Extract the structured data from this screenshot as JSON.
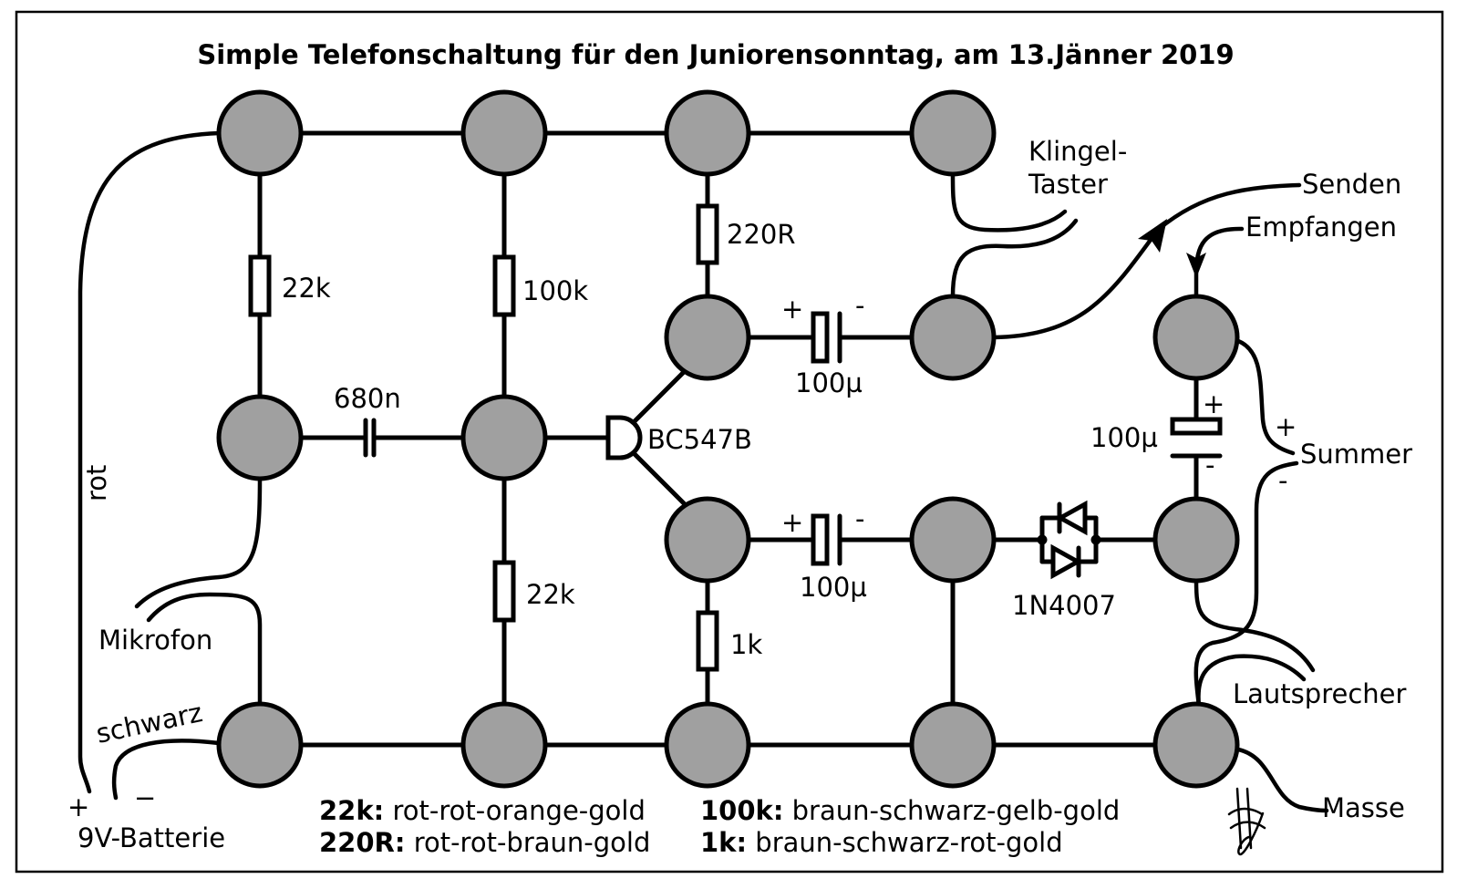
{
  "title": "Simple Telefonschaltung für den Juniorensonntag, am 13.Jänner 2019",
  "components": {
    "r1": "22k",
    "r2": "100k",
    "r3": "220R",
    "r4": "22k",
    "r5": "1k",
    "c1": "680n",
    "c2": "100µ",
    "c3": "100µ",
    "c4": "100µ",
    "transistor": "BC547B",
    "diode": "1N4007"
  },
  "polarity": {
    "plus": "+",
    "minus": "-",
    "minus_dash": "−"
  },
  "labels": {
    "klingel_line1": "Klingel-",
    "klingel_line2": "Taster",
    "senden": "Senden",
    "empfangen": "Empfangen",
    "summer": "Summer",
    "lautsprecher": "Lautsprecher",
    "masse": "Masse",
    "mikrofon": "Mikrofon",
    "rot": "rot",
    "schwarz": "schwarz",
    "batterie": "9V-Batterie"
  },
  "legend": [
    {
      "key": "22k:",
      "value": "rot-rot-orange-gold"
    },
    {
      "key": "220R:",
      "value": "rot-rot-braun-gold"
    },
    {
      "key": "100k:",
      "value": "braun-schwarz-gelb-gold"
    },
    {
      "key": "1k:",
      "value": "braun-schwarz-rot-gold"
    }
  ],
  "colors": {
    "node_fill": "#a0a0a0",
    "stroke": "#000000",
    "background": "#ffffff"
  }
}
